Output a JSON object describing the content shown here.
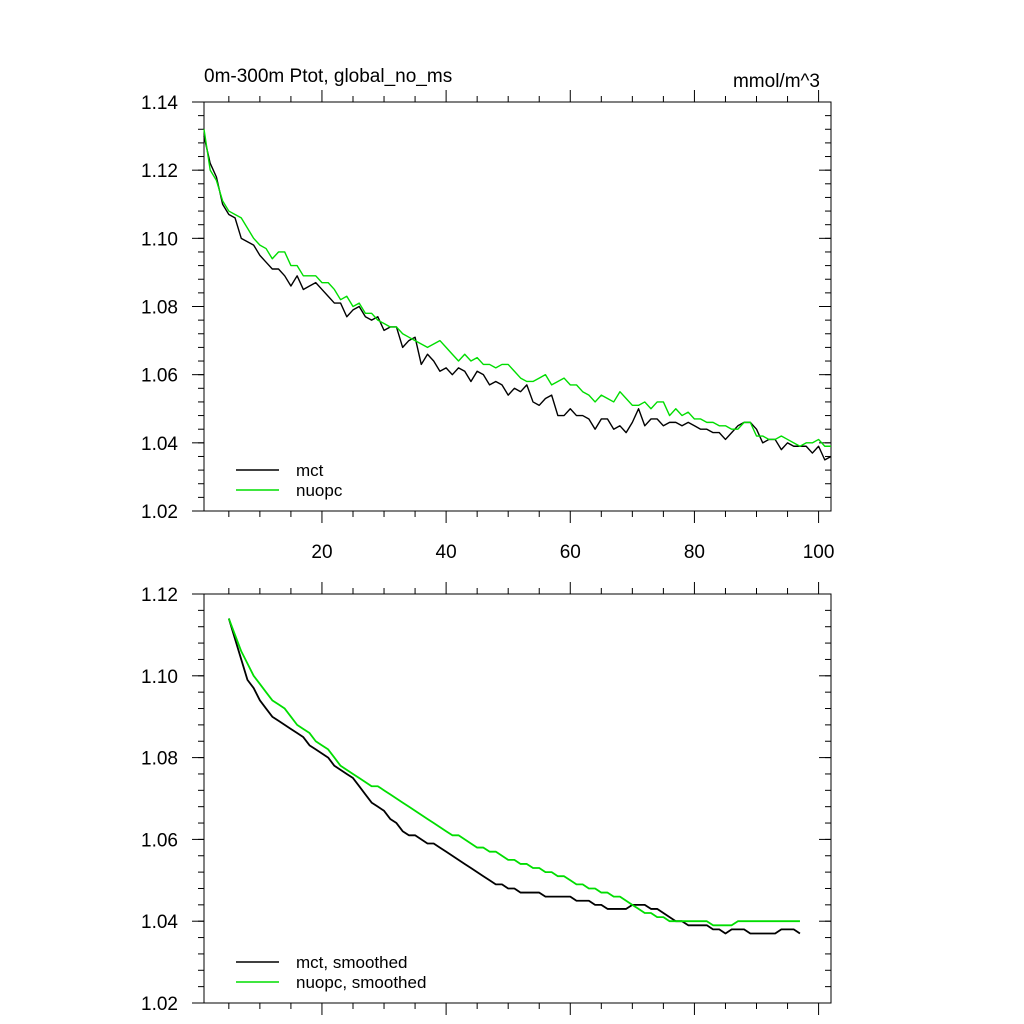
{
  "chart_data": [
    {
      "type": "line",
      "title": "0m-300m Ptot, global_no_ms",
      "units": "mmol/m^3",
      "xlim": [
        1,
        102
      ],
      "ylim": [
        1.02,
        1.14
      ],
      "x_ticks": [
        20,
        40,
        60,
        80,
        100
      ],
      "y_ticks": [
        "1.02",
        "1.04",
        "1.06",
        "1.08",
        "1.10",
        "1.12",
        "1.14"
      ],
      "legend_position": "bottom-left",
      "series": [
        {
          "name": "mct",
          "color": "#000000",
          "x_start": 1,
          "values": [
            1.13,
            1.122,
            1.118,
            1.11,
            1.107,
            1.106,
            1.1,
            1.099,
            1.098,
            1.095,
            1.093,
            1.091,
            1.091,
            1.089,
            1.086,
            1.089,
            1.085,
            1.086,
            1.087,
            1.085,
            1.083,
            1.081,
            1.081,
            1.077,
            1.079,
            1.08,
            1.077,
            1.076,
            1.077,
            1.073,
            1.074,
            1.074,
            1.068,
            1.07,
            1.071,
            1.063,
            1.066,
            1.064,
            1.061,
            1.062,
            1.06,
            1.062,
            1.061,
            1.058,
            1.061,
            1.06,
            1.057,
            1.058,
            1.057,
            1.054,
            1.056,
            1.055,
            1.057,
            1.052,
            1.051,
            1.053,
            1.054,
            1.048,
            1.048,
            1.05,
            1.048,
            1.048,
            1.047,
            1.044,
            1.047,
            1.047,
            1.044,
            1.045,
            1.043,
            1.046,
            1.05,
            1.045,
            1.047,
            1.047,
            1.045,
            1.046,
            1.046,
            1.045,
            1.046,
            1.045,
            1.044,
            1.044,
            1.043,
            1.043,
            1.041,
            1.043,
            1.045,
            1.046,
            1.046,
            1.044,
            1.04,
            1.041,
            1.041,
            1.038,
            1.04,
            1.039,
            1.039,
            1.039,
            1.037,
            1.039,
            1.035,
            1.036
          ]
        },
        {
          "name": "nuopc",
          "color": "#00dd00",
          "x_start": 1,
          "values": [
            1.132,
            1.12,
            1.117,
            1.111,
            1.108,
            1.107,
            1.106,
            1.103,
            1.1,
            1.098,
            1.097,
            1.094,
            1.096,
            1.096,
            1.092,
            1.092,
            1.089,
            1.089,
            1.089,
            1.087,
            1.087,
            1.085,
            1.082,
            1.083,
            1.08,
            1.081,
            1.078,
            1.078,
            1.076,
            1.075,
            1.074,
            1.074,
            1.072,
            1.071,
            1.07,
            1.069,
            1.068,
            1.069,
            1.07,
            1.068,
            1.066,
            1.064,
            1.066,
            1.064,
            1.065,
            1.063,
            1.063,
            1.062,
            1.063,
            1.063,
            1.061,
            1.059,
            1.058,
            1.058,
            1.059,
            1.06,
            1.057,
            1.058,
            1.059,
            1.057,
            1.057,
            1.055,
            1.054,
            1.052,
            1.054,
            1.053,
            1.052,
            1.055,
            1.053,
            1.051,
            1.051,
            1.052,
            1.05,
            1.052,
            1.052,
            1.048,
            1.05,
            1.048,
            1.049,
            1.047,
            1.047,
            1.046,
            1.046,
            1.045,
            1.045,
            1.044,
            1.044,
            1.046,
            1.046,
            1.042,
            1.042,
            1.041,
            1.041,
            1.042,
            1.041,
            1.04,
            1.039,
            1.04,
            1.04,
            1.041,
            1.039,
            1.039
          ]
        }
      ]
    },
    {
      "type": "line",
      "title": "",
      "xlim": [
        1,
        102
      ],
      "ylim": [
        1.02,
        1.12
      ],
      "y_ticks": [
        "1.02",
        "1.04",
        "1.06",
        "1.08",
        "1.10",
        "1.12"
      ],
      "legend_position": "bottom-left",
      "series": [
        {
          "name": "mct, smoothed",
          "color": "#000000",
          "x_start": 5,
          "values": [
            1.114,
            1.109,
            1.104,
            1.099,
            1.097,
            1.094,
            1.092,
            1.09,
            1.089,
            1.088,
            1.087,
            1.086,
            1.085,
            1.083,
            1.082,
            1.081,
            1.08,
            1.078,
            1.077,
            1.076,
            1.075,
            1.073,
            1.071,
            1.069,
            1.068,
            1.067,
            1.065,
            1.064,
            1.062,
            1.061,
            1.061,
            1.06,
            1.059,
            1.059,
            1.058,
            1.057,
            1.056,
            1.055,
            1.054,
            1.053,
            1.052,
            1.051,
            1.05,
            1.049,
            1.049,
            1.048,
            1.048,
            1.047,
            1.047,
            1.047,
            1.047,
            1.046,
            1.046,
            1.046,
            1.046,
            1.046,
            1.045,
            1.045,
            1.045,
            1.044,
            1.044,
            1.043,
            1.043,
            1.043,
            1.043,
            1.044,
            1.044,
            1.044,
            1.043,
            1.043,
            1.042,
            1.041,
            1.04,
            1.04,
            1.039,
            1.039,
            1.039,
            1.039,
            1.038,
            1.038,
            1.037,
            1.038,
            1.038,
            1.038,
            1.037,
            1.037,
            1.037,
            1.037,
            1.037,
            1.038,
            1.038,
            1.038,
            1.037
          ]
        },
        {
          "name": "nuopc, smoothed",
          "color": "#00dd00",
          "x_start": 5,
          "values": [
            1.114,
            1.11,
            1.106,
            1.103,
            1.1,
            1.098,
            1.096,
            1.094,
            1.093,
            1.092,
            1.09,
            1.088,
            1.087,
            1.086,
            1.084,
            1.083,
            1.082,
            1.08,
            1.078,
            1.077,
            1.076,
            1.075,
            1.074,
            1.073,
            1.073,
            1.072,
            1.071,
            1.07,
            1.069,
            1.068,
            1.067,
            1.066,
            1.065,
            1.064,
            1.063,
            1.062,
            1.061,
            1.061,
            1.06,
            1.059,
            1.058,
            1.058,
            1.057,
            1.057,
            1.056,
            1.055,
            1.055,
            1.054,
            1.054,
            1.053,
            1.053,
            1.052,
            1.052,
            1.051,
            1.051,
            1.05,
            1.049,
            1.049,
            1.048,
            1.048,
            1.047,
            1.047,
            1.046,
            1.046,
            1.045,
            1.044,
            1.043,
            1.042,
            1.042,
            1.041,
            1.041,
            1.04,
            1.04,
            1.04,
            1.04,
            1.04,
            1.04,
            1.04,
            1.039,
            1.039,
            1.039,
            1.039,
            1.04,
            1.04,
            1.04,
            1.04,
            1.04,
            1.04,
            1.04,
            1.04,
            1.04,
            1.04,
            1.04
          ]
        }
      ]
    }
  ]
}
